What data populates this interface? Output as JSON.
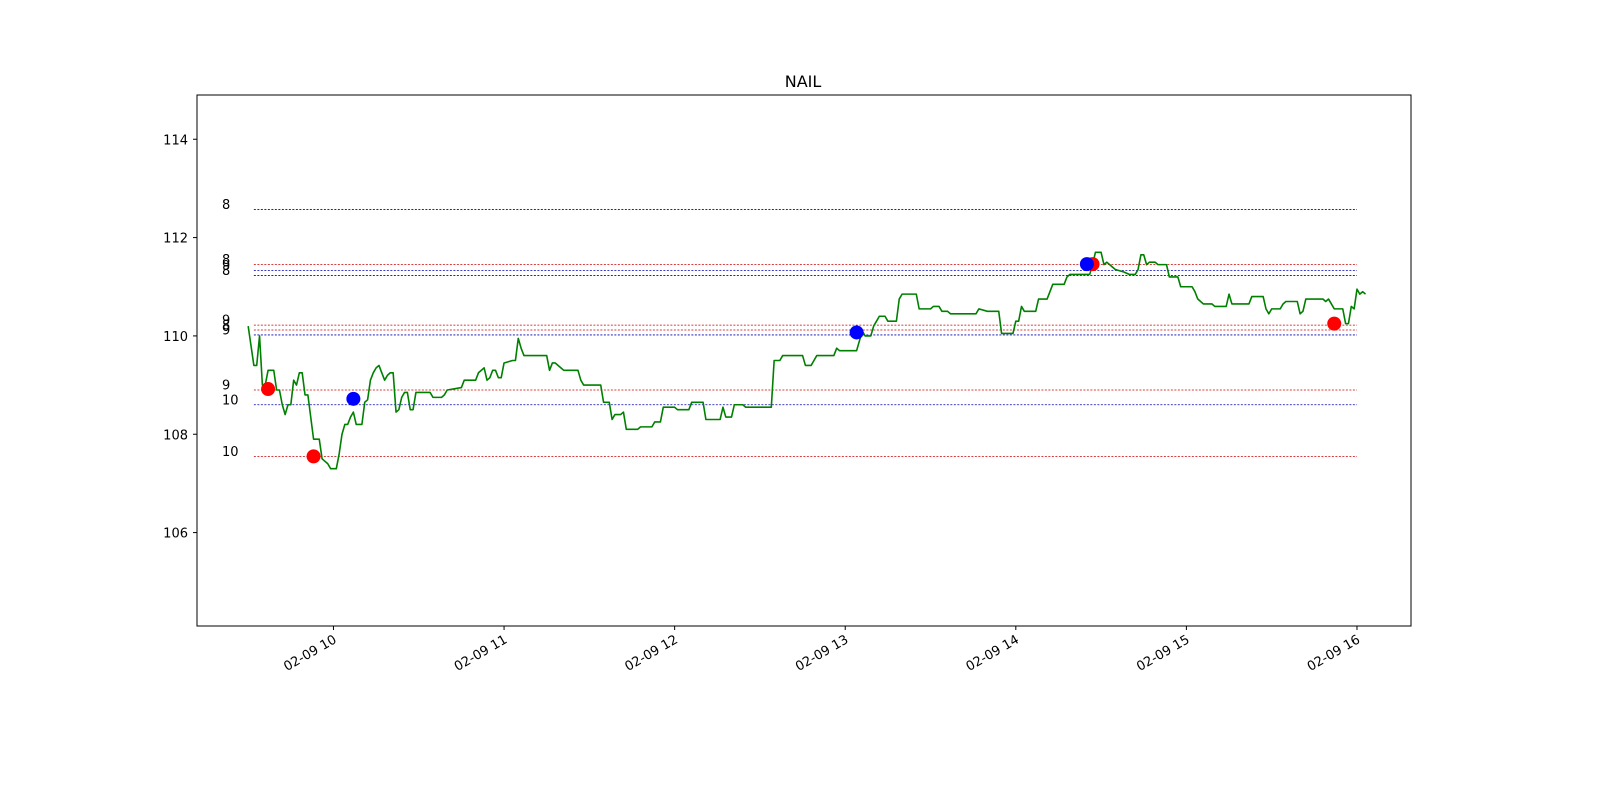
{
  "chart_data": {
    "type": "line",
    "title": "NAIL",
    "xlabel": "",
    "ylabel": "",
    "x_range": [
      "2025-02-09 09:12",
      "2025-02-09 16:19"
    ],
    "ylim": [
      104.1,
      114.9
    ],
    "grid": false,
    "x_ticks": [
      {
        "x": "2025-02-09 10:00",
        "label": "02-09 10"
      },
      {
        "x": "2025-02-09 11:00",
        "label": "02-09 11"
      },
      {
        "x": "2025-02-09 12:00",
        "label": "02-09 12"
      },
      {
        "x": "2025-02-09 13:00",
        "label": "02-09 13"
      },
      {
        "x": "2025-02-09 14:00",
        "label": "02-09 14"
      },
      {
        "x": "2025-02-09 15:00",
        "label": "02-09 15"
      },
      {
        "x": "2025-02-09 16:00",
        "label": "02-09 16"
      }
    ],
    "y_ticks": [
      106,
      108,
      110,
      112,
      114
    ],
    "series": [
      {
        "color": "#008000",
        "points": [
          [
            "2025-02-09 09:30",
            110.2
          ],
          [
            "2025-02-09 09:31",
            109.8
          ],
          [
            "2025-02-09 09:32",
            109.4
          ],
          [
            "2025-02-09 09:33",
            109.4
          ],
          [
            "2025-02-09 09:34",
            110.0
          ],
          [
            "2025-02-09 09:35",
            109.0
          ],
          [
            "2025-02-09 09:36",
            109.0
          ],
          [
            "2025-02-09 09:37",
            109.3
          ],
          [
            "2025-02-09 09:39",
            109.3
          ],
          [
            "2025-02-09 09:40",
            108.9
          ],
          [
            "2025-02-09 09:41",
            108.9
          ],
          [
            "2025-02-09 09:42",
            108.6
          ],
          [
            "2025-02-09 09:43",
            108.4
          ],
          [
            "2025-02-09 09:44",
            108.6
          ],
          [
            "2025-02-09 09:45",
            108.6
          ],
          [
            "2025-02-09 09:46",
            109.1
          ],
          [
            "2025-02-09 09:47",
            109.0
          ],
          [
            "2025-02-09 09:48",
            109.25
          ],
          [
            "2025-02-09 09:49",
            109.25
          ],
          [
            "2025-02-09 09:50",
            108.8
          ],
          [
            "2025-02-09 09:51",
            108.8
          ],
          [
            "2025-02-09 09:53",
            107.9
          ],
          [
            "2025-02-09 09:55",
            107.9
          ],
          [
            "2025-02-09 09:56",
            107.5
          ],
          [
            "2025-02-09 09:58",
            107.4
          ],
          [
            "2025-02-09 09:59",
            107.3
          ],
          [
            "2025-02-09 10:01",
            107.3
          ],
          [
            "2025-02-09 10:02",
            107.6
          ],
          [
            "2025-02-09 10:03",
            108.0
          ],
          [
            "2025-02-09 10:04",
            108.2
          ],
          [
            "2025-02-09 10:05",
            108.2
          ],
          [
            "2025-02-09 10:06",
            108.35
          ],
          [
            "2025-02-09 10:07",
            108.45
          ],
          [
            "2025-02-09 10:08",
            108.2
          ],
          [
            "2025-02-09 10:10",
            108.2
          ],
          [
            "2025-02-09 10:11",
            108.65
          ],
          [
            "2025-02-09 10:12",
            108.7
          ],
          [
            "2025-02-09 10:13",
            109.1
          ],
          [
            "2025-02-09 10:14",
            109.25
          ],
          [
            "2025-02-09 10:15",
            109.35
          ],
          [
            "2025-02-09 10:16",
            109.4
          ],
          [
            "2025-02-09 10:17",
            109.25
          ],
          [
            "2025-02-09 10:18",
            109.1
          ],
          [
            "2025-02-09 10:19",
            109.2
          ],
          [
            "2025-02-09 10:20",
            109.25
          ],
          [
            "2025-02-09 10:21",
            109.25
          ],
          [
            "2025-02-09 10:22",
            108.45
          ],
          [
            "2025-02-09 10:23",
            108.5
          ],
          [
            "2025-02-09 10:24",
            108.75
          ],
          [
            "2025-02-09 10:25",
            108.85
          ],
          [
            "2025-02-09 10:26",
            108.85
          ],
          [
            "2025-02-09 10:27",
            108.5
          ],
          [
            "2025-02-09 10:28",
            108.5
          ],
          [
            "2025-02-09 10:29",
            108.85
          ],
          [
            "2025-02-09 10:34",
            108.85
          ],
          [
            "2025-02-09 10:35",
            108.75
          ],
          [
            "2025-02-09 10:38",
            108.75
          ],
          [
            "2025-02-09 10:39",
            108.8
          ],
          [
            "2025-02-09 10:40",
            108.9
          ],
          [
            "2025-02-09 10:45",
            108.95
          ],
          [
            "2025-02-09 10:46",
            109.1
          ],
          [
            "2025-02-09 10:50",
            109.1
          ],
          [
            "2025-02-09 10:51",
            109.25
          ],
          [
            "2025-02-09 10:53",
            109.35
          ],
          [
            "2025-02-09 10:54",
            109.1
          ],
          [
            "2025-02-09 10:55",
            109.15
          ],
          [
            "2025-02-09 10:56",
            109.3
          ],
          [
            "2025-02-09 10:57",
            109.3
          ],
          [
            "2025-02-09 10:58",
            109.15
          ],
          [
            "2025-02-09 10:59",
            109.15
          ],
          [
            "2025-02-09 11:00",
            109.45
          ],
          [
            "2025-02-09 11:03",
            109.5
          ],
          [
            "2025-02-09 11:04",
            109.5
          ],
          [
            "2025-02-09 11:05",
            109.95
          ],
          [
            "2025-02-09 11:06",
            109.75
          ],
          [
            "2025-02-09 11:07",
            109.6
          ],
          [
            "2025-02-09 11:15",
            109.6
          ],
          [
            "2025-02-09 11:16",
            109.3
          ],
          [
            "2025-02-09 11:17",
            109.45
          ],
          [
            "2025-02-09 11:18",
            109.45
          ],
          [
            "2025-02-09 11:20",
            109.35
          ],
          [
            "2025-02-09 11:21",
            109.3
          ],
          [
            "2025-02-09 11:26",
            109.3
          ],
          [
            "2025-02-09 11:27",
            109.1
          ],
          [
            "2025-02-09 11:28",
            109.0
          ],
          [
            "2025-02-09 11:34",
            109.0
          ],
          [
            "2025-02-09 11:35",
            108.65
          ],
          [
            "2025-02-09 11:37",
            108.65
          ],
          [
            "2025-02-09 11:38",
            108.3
          ],
          [
            "2025-02-09 11:39",
            108.4
          ],
          [
            "2025-02-09 11:41",
            108.4
          ],
          [
            "2025-02-09 11:42",
            108.45
          ],
          [
            "2025-02-09 11:43",
            108.1
          ],
          [
            "2025-02-09 11:47",
            108.1
          ],
          [
            "2025-02-09 11:48",
            108.15
          ],
          [
            "2025-02-09 11:52",
            108.15
          ],
          [
            "2025-02-09 11:53",
            108.25
          ],
          [
            "2025-02-09 11:55",
            108.25
          ],
          [
            "2025-02-09 11:56",
            108.55
          ],
          [
            "2025-02-09 12:00",
            108.55
          ],
          [
            "2025-02-09 12:01",
            108.5
          ],
          [
            "2025-02-09 12:05",
            108.5
          ],
          [
            "2025-02-09 12:06",
            108.65
          ],
          [
            "2025-02-09 12:10",
            108.65
          ],
          [
            "2025-02-09 12:11",
            108.3
          ],
          [
            "2025-02-09 12:16",
            108.3
          ],
          [
            "2025-02-09 12:17",
            108.55
          ],
          [
            "2025-02-09 12:18",
            108.35
          ],
          [
            "2025-02-09 12:20",
            108.35
          ],
          [
            "2025-02-09 12:21",
            108.6
          ],
          [
            "2025-02-09 12:24",
            108.6
          ],
          [
            "2025-02-09 12:25",
            108.55
          ],
          [
            "2025-02-09 12:34",
            108.55
          ],
          [
            "2025-02-09 12:35",
            109.5
          ],
          [
            "2025-02-09 12:37",
            109.5
          ],
          [
            "2025-02-09 12:38",
            109.6
          ],
          [
            "2025-02-09 12:45",
            109.6
          ],
          [
            "2025-02-09 12:46",
            109.4
          ],
          [
            "2025-02-09 12:48",
            109.4
          ],
          [
            "2025-02-09 12:49",
            109.5
          ],
          [
            "2025-02-09 12:50",
            109.6
          ],
          [
            "2025-02-09 12:56",
            109.6
          ],
          [
            "2025-02-09 12:57",
            109.75
          ],
          [
            "2025-02-09 12:58",
            109.7
          ],
          [
            "2025-02-09 13:04",
            109.7
          ],
          [
            "2025-02-09 13:05",
            109.9
          ],
          [
            "2025-02-09 13:06",
            110.1
          ],
          [
            "2025-02-09 13:07",
            110.0
          ],
          [
            "2025-02-09 13:09",
            110.0
          ],
          [
            "2025-02-09 13:10",
            110.2
          ],
          [
            "2025-02-09 13:11",
            110.3
          ],
          [
            "2025-02-09 13:12",
            110.4
          ],
          [
            "2025-02-09 13:14",
            110.4
          ],
          [
            "2025-02-09 13:15",
            110.3
          ],
          [
            "2025-02-09 13:18",
            110.3
          ],
          [
            "2025-02-09 13:19",
            110.75
          ],
          [
            "2025-02-09 13:20",
            110.85
          ],
          [
            "2025-02-09 13:25",
            110.85
          ],
          [
            "2025-02-09 13:26",
            110.55
          ],
          [
            "2025-02-09 13:30",
            110.55
          ],
          [
            "2025-02-09 13:31",
            110.6
          ],
          [
            "2025-02-09 13:33",
            110.6
          ],
          [
            "2025-02-09 13:34",
            110.5
          ],
          [
            "2025-02-09 13:36",
            110.5
          ],
          [
            "2025-02-09 13:37",
            110.45
          ],
          [
            "2025-02-09 13:46",
            110.45
          ],
          [
            "2025-02-09 13:47",
            110.55
          ],
          [
            "2025-02-09 13:50",
            110.5
          ],
          [
            "2025-02-09 13:54",
            110.5
          ],
          [
            "2025-02-09 13:55",
            110.05
          ],
          [
            "2025-02-09 13:59",
            110.05
          ],
          [
            "2025-02-09 14:00",
            110.3
          ],
          [
            "2025-02-09 14:01",
            110.3
          ],
          [
            "2025-02-09 14:02",
            110.6
          ],
          [
            "2025-02-09 14:03",
            110.5
          ],
          [
            "2025-02-09 14:07",
            110.5
          ],
          [
            "2025-02-09 14:08",
            110.75
          ],
          [
            "2025-02-09 14:11",
            110.75
          ],
          [
            "2025-02-09 14:12",
            110.9
          ],
          [
            "2025-02-09 14:13",
            111.05
          ],
          [
            "2025-02-09 14:17",
            111.05
          ],
          [
            "2025-02-09 14:18",
            111.2
          ],
          [
            "2025-02-09 14:19",
            111.25
          ],
          [
            "2025-02-09 14:26",
            111.25
          ],
          [
            "2025-02-09 14:27",
            111.45
          ],
          [
            "2025-02-09 14:28",
            111.7
          ],
          [
            "2025-02-09 14:30",
            111.7
          ],
          [
            "2025-02-09 14:31",
            111.45
          ],
          [
            "2025-02-09 14:32",
            111.5
          ],
          [
            "2025-02-09 14:33",
            111.45
          ],
          [
            "2025-02-09 14:35",
            111.35
          ],
          [
            "2025-02-09 14:38",
            111.3
          ],
          [
            "2025-02-09 14:40",
            111.25
          ],
          [
            "2025-02-09 14:42",
            111.25
          ],
          [
            "2025-02-09 14:43",
            111.35
          ],
          [
            "2025-02-09 14:44",
            111.65
          ],
          [
            "2025-02-09 14:45",
            111.65
          ],
          [
            "2025-02-09 14:46",
            111.45
          ],
          [
            "2025-02-09 14:47",
            111.5
          ],
          [
            "2025-02-09 14:49",
            111.5
          ],
          [
            "2025-02-09 14:50",
            111.45
          ],
          [
            "2025-02-09 14:53",
            111.45
          ],
          [
            "2025-02-09 14:54",
            111.2
          ],
          [
            "2025-02-09 14:57",
            111.2
          ],
          [
            "2025-02-09 14:58",
            111.0
          ],
          [
            "2025-02-09 15:02",
            111.0
          ],
          [
            "2025-02-09 15:03",
            110.9
          ],
          [
            "2025-02-09 15:04",
            110.75
          ],
          [
            "2025-02-09 15:06",
            110.65
          ],
          [
            "2025-02-09 15:09",
            110.65
          ],
          [
            "2025-02-09 15:10",
            110.6
          ],
          [
            "2025-02-09 15:14",
            110.6
          ],
          [
            "2025-02-09 15:15",
            110.85
          ],
          [
            "2025-02-09 15:16",
            110.65
          ],
          [
            "2025-02-09 15:22",
            110.65
          ],
          [
            "2025-02-09 15:23",
            110.8
          ],
          [
            "2025-02-09 15:27",
            110.8
          ],
          [
            "2025-02-09 15:28",
            110.55
          ],
          [
            "2025-02-09 15:29",
            110.45
          ],
          [
            "2025-02-09 15:30",
            110.55
          ],
          [
            "2025-02-09 15:33",
            110.55
          ],
          [
            "2025-02-09 15:34",
            110.65
          ],
          [
            "2025-02-09 15:35",
            110.7
          ],
          [
            "2025-02-09 15:39",
            110.7
          ],
          [
            "2025-02-09 15:40",
            110.45
          ],
          [
            "2025-02-09 15:41",
            110.5
          ],
          [
            "2025-02-09 15:42",
            110.75
          ],
          [
            "2025-02-09 15:48",
            110.75
          ],
          [
            "2025-02-09 15:49",
            110.7
          ],
          [
            "2025-02-09 15:50",
            110.75
          ],
          [
            "2025-02-09 15:51",
            110.65
          ],
          [
            "2025-02-09 15:52",
            110.55
          ],
          [
            "2025-02-09 15:55",
            110.55
          ],
          [
            "2025-02-09 15:56",
            110.25
          ],
          [
            "2025-02-09 15:57",
            110.25
          ],
          [
            "2025-02-09 15:58",
            110.6
          ],
          [
            "2025-02-09 15:59",
            110.55
          ],
          [
            "2025-02-09 16:00",
            110.95
          ],
          [
            "2025-02-09 16:01",
            110.85
          ],
          [
            "2025-02-09 16:02",
            110.9
          ],
          [
            "2025-02-09 16:03",
            110.85
          ]
        ]
      }
    ],
    "levels": [
      {
        "value": 112.57,
        "label": "8",
        "color": "#0000b3"
      },
      {
        "value": 111.45,
        "label": "8",
        "color": "#cc0000"
      },
      {
        "value": 111.33,
        "label": "9",
        "color": "#0000b3"
      },
      {
        "value": 111.23,
        "label": "8",
        "color": "#0000b3"
      },
      {
        "value": 110.22,
        "label": "9",
        "color": "#cc0000"
      },
      {
        "value": 110.12,
        "label": "8",
        "color": "#cc0000"
      },
      {
        "value": 110.02,
        "label": "9",
        "color": "#0000b3"
      },
      {
        "value": 108.9,
        "label": "9",
        "color": "#cc0000"
      },
      {
        "value": 108.6,
        "label": "10",
        "color": "#0000b3"
      },
      {
        "value": 107.55,
        "label": "10",
        "color": "#cc0000"
      }
    ],
    "markers": [
      {
        "x": "2025-02-09 09:37",
        "y": 108.92,
        "color": "#ff0000"
      },
      {
        "x": "2025-02-09 09:53",
        "y": 107.55,
        "color": "#ff0000"
      },
      {
        "x": "2025-02-09 10:07",
        "y": 108.72,
        "color": "#0000ff"
      },
      {
        "x": "2025-02-09 13:04",
        "y": 110.07,
        "color": "#0000ff"
      },
      {
        "x": "2025-02-09 14:27",
        "y": 111.46,
        "color": "#ff0000"
      },
      {
        "x": "2025-02-09 14:25",
        "y": 111.46,
        "color": "#0000ff"
      },
      {
        "x": "2025-02-09 15:52",
        "y": 110.25,
        "color": "#ff0000"
      }
    ],
    "level_x_range": [
      "2025-02-09 09:32",
      "2025-02-09 16:00"
    ]
  }
}
